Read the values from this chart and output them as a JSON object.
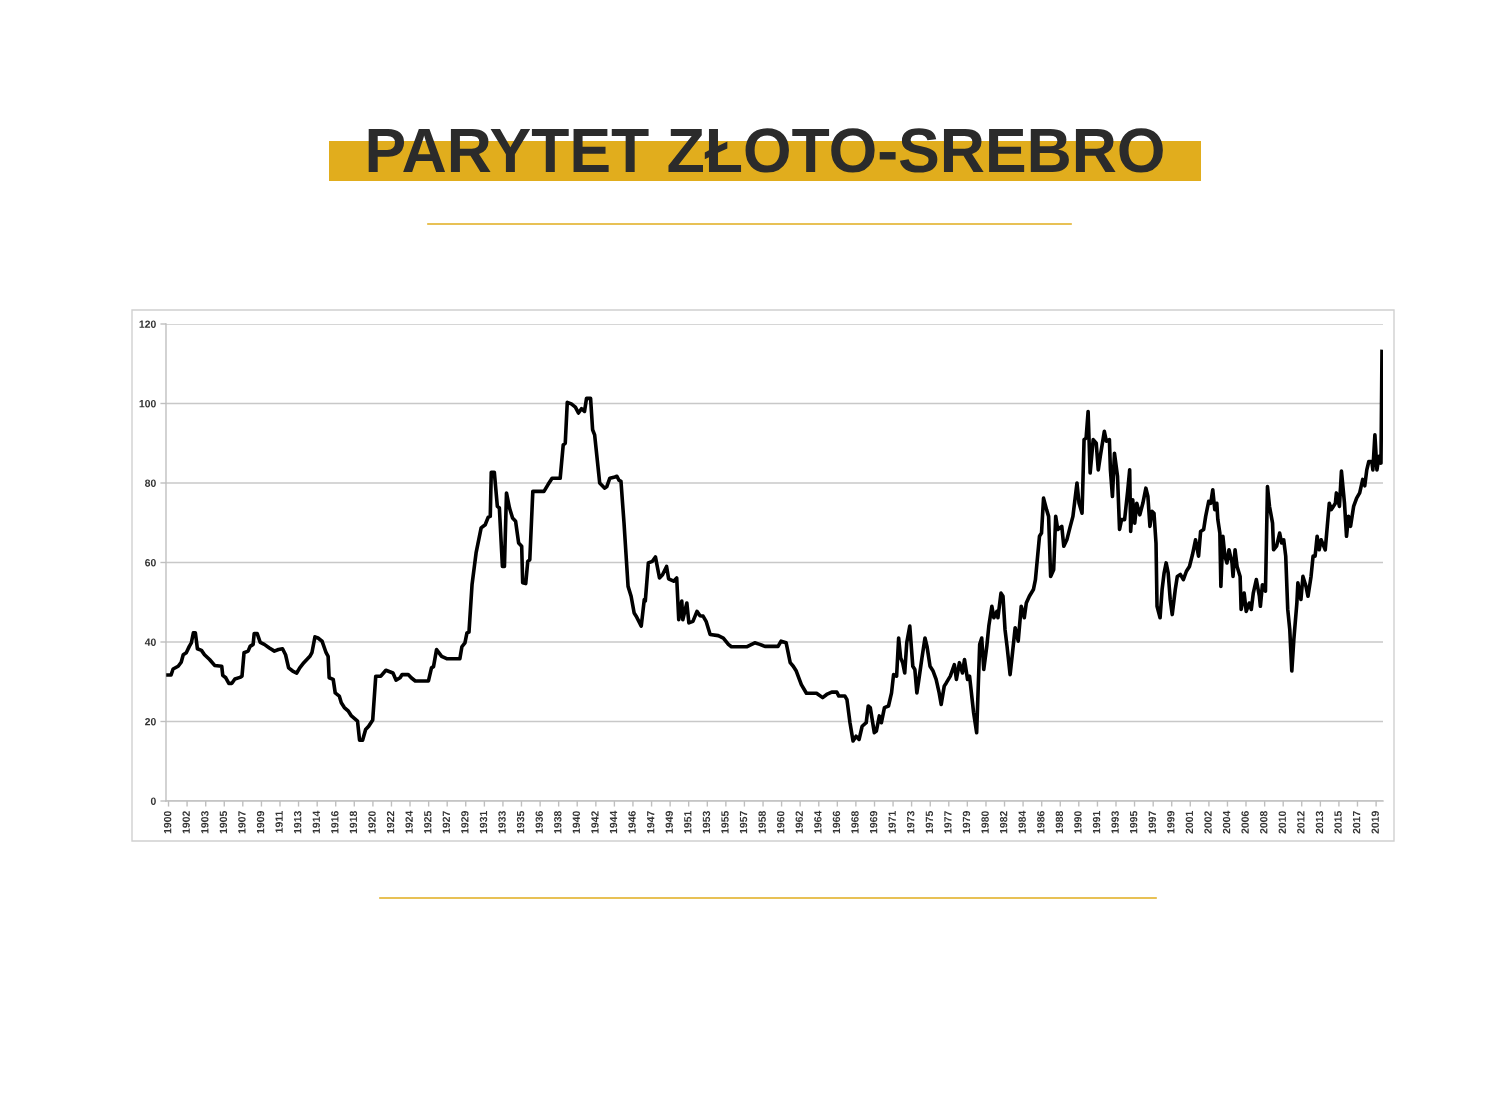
{
  "chart_data": {
    "type": "line",
    "title": "PARYTET ZŁOTO-SREBRO",
    "x": [
      1899.7,
      1900.0,
      1900.2,
      1900.7,
      1901.0,
      1901.2,
      1901.5,
      1901.8,
      1902.0,
      1902.2,
      1902.4,
      1902.6,
      1903.0,
      1903.3,
      1903.8,
      1904.3,
      1905.0,
      1905.1,
      1905.4,
      1905.7,
      1906.0,
      1906.3,
      1906.8,
      1907.0,
      1907.2,
      1907.6,
      1907.8,
      1908.1,
      1908.2,
      1908.5,
      1908.8,
      1909.2,
      1909.7,
      1910.2,
      1910.6,
      1911.0,
      1911.3,
      1911.6,
      1912.0,
      1912.4,
      1912.7,
      1913.1,
      1913.7,
      1913.9,
      1914.2,
      1914.5,
      1914.9,
      1915.3,
      1915.5,
      1915.6,
      1916.0,
      1916.2,
      1916.6,
      1916.8,
      1917.1,
      1917.5,
      1917.8,
      1918.4,
      1918.6,
      1918.9,
      1919.2,
      1919.5,
      1919.9,
      1920.2,
      1920.7,
      1921.2,
      1921.9,
      1922.2,
      1922.6,
      1922.8,
      1923.4,
      1923.7,
      1924.1,
      1925.4,
      1925.7,
      1925.9,
      1926.2,
      1926.7,
      1927.2,
      1928.5,
      1928.7,
      1929.0,
      1929.2,
      1929.4,
      1929.7,
      1930.1,
      1930.6,
      1931.0,
      1931.3,
      1931.5,
      1931.6,
      1931.9,
      1932.2,
      1932.4,
      1932.7,
      1932.9,
      1933.1,
      1933.4,
      1933.7,
      1934.0,
      1934.3,
      1934.6,
      1934.7,
      1935.0,
      1935.2,
      1935.4,
      1935.7,
      1936.8,
      1937.2,
      1937.6,
      1938.4,
      1938.7,
      1938.9,
      1939.1,
      1939.5,
      1939.9,
      1940.2,
      1940.5,
      1940.8,
      1941.0,
      1941.4,
      1941.6,
      1941.8,
      1942.3,
      1942.8,
      1943.0,
      1943.3,
      1943.8,
      1944.0,
      1944.2,
      1944.4,
      1944.7,
      1945.1,
      1945.4,
      1945.7,
      1945.9,
      1946.4,
      1946.7,
      1946.8,
      1947.1,
      1947.5,
      1947.8,
      1948.2,
      1948.5,
      1948.9,
      1949.1,
      1949.6,
      1949.9,
      1950.1,
      1950.4,
      1950.5,
      1950.9,
      1951.1,
      1951.5,
      1951.9,
      1952.2,
      1952.5,
      1952.8,
      1953.2,
      1954.0,
      1954.5,
      1955.0,
      1955.3,
      1956.8,
      1957.6,
      1958.1,
      1958.6,
      1959.9,
      1960.2,
      1960.7,
      1961.1,
      1961.4,
      1961.7,
      1962.2,
      1962.7,
      1963.7,
      1964.3,
      1964.7,
      1965.2,
      1965.7,
      1965.9,
      1966.5,
      1966.7,
      1967.0,
      1967.3,
      1967.6,
      1967.9,
      1968.2,
      1968.6,
      1968.8,
      1969.0,
      1969.4,
      1969.6,
      1969.9,
      1970.1,
      1970.4,
      1970.8,
      1971.1,
      1971.3,
      1971.6,
      1971.8,
      1972.0,
      1972.2,
      1972.4,
      1972.6,
      1972.9,
      1973.2,
      1973.4,
      1973.6,
      1973.8,
      1974.1,
      1974.4,
      1974.6,
      1974.9,
      1975.2,
      1975.5,
      1975.8,
      1976.0,
      1976.3,
      1976.5,
      1976.9,
      1977.3,
      1977.5,
      1977.8,
      1978.1,
      1978.3,
      1978.6,
      1978.8,
      1979.2,
      1979.5,
      1979.8,
      1980.0,
      1980.2,
      1980.5,
      1980.7,
      1981.0,
      1981.2,
      1981.5,
      1981.6,
      1981.9,
      1982.1,
      1982.3,
      1982.5,
      1982.8,
      1983.0,
      1983.3,
      1983.6,
      1983.9,
      1984.2,
      1984.4,
      1984.7,
      1985.1,
      1985.3,
      1985.7,
      1985.9,
      1986.1,
      1986.4,
      1986.6,
      1986.8,
      1987.1,
      1987.3,
      1987.5,
      1987.9,
      1988.1,
      1988.4,
      1988.7,
      1989.0,
      1989.4,
      1989.6,
      1989.9,
      1990.1,
      1990.3,
      1990.5,
      1990.7,
      1991.0,
      1991.3,
      1991.5,
      1991.7,
      1992.1,
      1992.3,
      1992.6,
      1992.7,
      1992.9,
      1993.1,
      1993.4,
      1993.6,
      1993.8,
      1994.1,
      1994.4,
      1994.6,
      1994.7,
      1994.9,
      1995.1,
      1995.3,
      1995.6,
      1995.9,
      1996.2,
      1996.4,
      1996.6,
      1996.8,
      1997.0,
      1997.2,
      1997.3,
      1997.6,
      1997.8,
      1998.0,
      1998.2,
      1998.4,
      1998.6,
      1998.8,
      1999.1,
      1999.3,
      1999.6,
      1999.9,
      2000.2,
      2000.5,
      2000.8,
      2001.1,
      2001.4,
      2001.6,
      2001.9,
      2002.1,
      2002.4,
      2002.6,
      2002.8,
      2003.0,
      2003.2,
      2003.3,
      2003.5,
      2003.6,
      2003.8,
      2004.0,
      2004.2,
      2004.4,
      2004.7,
      2004.8,
      2005.0,
      2005.2,
      2005.5,
      2005.6,
      2005.9,
      2006.1,
      2006.4,
      2006.6,
      2006.8,
      2007.1,
      2007.4,
      2007.5,
      2007.7,
      2008.0,
      2008.2,
      2008.4,
      2008.7,
      2008.8,
      2009.1,
      2009.4,
      2009.6,
      2009.8,
      2010.0,
      2010.2,
      2010.4,
      2010.6,
      2010.8,
      2011.1,
      2011.2,
      2011.5,
      2011.7,
      2012.0,
      2012.2,
      2012.5,
      2012.7,
      2012.9,
      2013.1,
      2013.3,
      2013.5,
      2013.9,
      2014.1,
      2014.3,
      2014.5,
      2014.9,
      2015.0,
      2015.3,
      2015.5,
      2015.8,
      2016.0,
      2016.2,
      2016.4,
      2016.7,
      2017.0,
      2017.3,
      2017.6,
      2017.8,
      2018.0,
      2018.2,
      2018.5,
      2018.6,
      2018.8,
      2019.0,
      2019.2,
      2019.4,
      2019.5
    ],
    "series": [
      {
        "color": "#000000",
        "values": [
          31.7,
          31.7,
          33.2,
          33.9,
          34.9,
          36.8,
          37.3,
          38.9,
          39.8,
          42.3,
          42.3,
          38.3,
          37.9,
          36.8,
          35.6,
          34.1,
          33.9,
          31.6,
          31.0,
          29.6,
          29.6,
          30.7,
          31.1,
          31.4,
          37.3,
          37.7,
          38.9,
          39.4,
          42.1,
          42.1,
          39.9,
          39.4,
          38.5,
          37.7,
          38.1,
          38.3,
          36.8,
          33.5,
          32.7,
          32.2,
          33.5,
          34.8,
          36.4,
          37.3,
          41.3,
          41.0,
          40.2,
          37.3,
          36.4,
          31.0,
          30.6,
          27.2,
          26.4,
          24.7,
          23.5,
          22.6,
          21.4,
          20.1,
          15.3,
          15.3,
          18.0,
          18.8,
          20.4,
          31.4,
          31.4,
          32.9,
          32.2,
          30.4,
          31.0,
          31.8,
          31.8,
          31.0,
          30.2,
          30.2,
          33.5,
          33.8,
          38.1,
          36.4,
          35.8,
          35.8,
          38.8,
          39.8,
          42.3,
          42.5,
          54.4,
          62.4,
          68.7,
          69.5,
          71.4,
          71.6,
          82.7,
          82.7,
          74.1,
          73.7,
          59.0,
          59.0,
          77.5,
          73.7,
          71.2,
          70.4,
          64.9,
          64.1,
          54.9,
          54.7,
          60.3,
          60.7,
          77.9,
          77.9,
          79.6,
          81.2,
          81.2,
          89.6,
          90.0,
          100.3,
          99.9,
          99.1,
          97.6,
          98.7,
          98.0,
          101.3,
          101.3,
          93.4,
          92.1,
          80.0,
          78.7,
          79.1,
          81.2,
          81.5,
          81.7,
          80.7,
          80.4,
          69.9,
          54.0,
          51.5,
          47.3,
          46.5,
          44.0,
          50.7,
          50.3,
          59.9,
          60.3,
          61.4,
          56.1,
          56.9,
          59.0,
          55.9,
          55.3,
          56.1,
          45.6,
          50.3,
          45.6,
          49.8,
          44.8,
          45.2,
          47.7,
          46.6,
          46.5,
          45.2,
          41.9,
          41.6,
          41.0,
          39.4,
          38.8,
          38.8,
          39.8,
          39.4,
          38.9,
          38.9,
          40.2,
          39.8,
          34.8,
          33.9,
          32.7,
          29.3,
          27.1,
          27.1,
          26.0,
          26.8,
          27.4,
          27.4,
          26.4,
          26.4,
          25.5,
          19.7,
          15.1,
          16.3,
          15.5,
          18.8,
          19.7,
          23.9,
          23.5,
          17.2,
          17.6,
          21.4,
          19.7,
          23.5,
          23.9,
          27.2,
          31.8,
          31.4,
          41.0,
          36.0,
          34.8,
          32.2,
          39.8,
          44.0,
          33.9,
          33.1,
          27.2,
          30.6,
          36.0,
          41.0,
          38.9,
          33.9,
          32.7,
          30.6,
          27.2,
          24.3,
          28.9,
          29.7,
          31.4,
          34.3,
          30.6,
          34.8,
          32.2,
          35.6,
          30.6,
          31.4,
          22.2,
          17.2,
          39.4,
          41.0,
          33.1,
          38.9,
          44.0,
          49.0,
          46.1,
          47.7,
          46.1,
          52.3,
          51.5,
          43.1,
          38.9,
          31.8,
          36.4,
          43.6,
          40.2,
          49.0,
          46.1,
          49.8,
          51.5,
          53.2,
          55.7,
          66.6,
          67.4,
          76.2,
          73.3,
          71.6,
          56.5,
          58.2,
          71.6,
          68.3,
          69.1,
          64.1,
          65.7,
          68.7,
          71.6,
          80.0,
          75.0,
          72.4,
          90.9,
          91.3,
          98.0,
          82.5,
          90.9,
          90.0,
          83.3,
          86.7,
          93.0,
          90.5,
          90.9,
          83.3,
          76.6,
          87.5,
          81.7,
          68.3,
          70.8,
          70.8,
          77.9,
          83.3,
          67.8,
          75.8,
          69.9,
          74.9,
          72.0,
          74.9,
          78.7,
          76.6,
          69.1,
          72.9,
          72.4,
          64.9,
          49.0,
          46.1,
          53.2,
          57.4,
          59.9,
          57.4,
          50.7,
          46.9,
          53.2,
          56.5,
          57.0,
          55.7,
          57.8,
          59.0,
          62.0,
          65.7,
          61.6,
          67.8,
          68.3,
          71.6,
          75.4,
          74.9,
          78.3,
          73.3,
          74.9,
          70.8,
          67.4,
          54.0,
          66.6,
          61.6,
          59.9,
          63.2,
          59.9,
          56.5,
          63.2,
          59.0,
          56.5,
          48.2,
          52.3,
          47.7,
          49.8,
          48.2,
          52.3,
          55.7,
          51.5,
          49.0,
          54.4,
          52.8,
          79.1,
          74.1,
          69.9,
          63.2,
          64.1,
          67.4,
          64.9,
          65.7,
          61.6,
          48.2,
          43.1,
          32.7,
          40.6,
          49.8,
          54.9,
          50.7,
          56.5,
          54.0,
          51.5,
          56.5,
          61.6,
          61.6,
          66.6,
          63.2,
          65.7,
          63.2,
          69.1,
          74.9,
          73.3,
          74.9,
          77.5,
          74.1,
          83.0,
          74.9,
          66.6,
          71.6,
          69.1,
          74.1,
          76.2,
          77.5,
          80.9,
          79.3,
          83.3,
          85.4,
          85.4,
          83.3,
          92.1,
          83.3,
          86.7,
          85.0,
          113.1
        ]
      }
    ],
    "xlim": [
      1899.5,
      2019.6
    ],
    "xticks": [
      {
        "value": 1899.75,
        "label": "1900"
      },
      {
        "value": 1901.58,
        "label": "1902"
      },
      {
        "value": 1903.42,
        "label": "1903"
      },
      {
        "value": 1905.25,
        "label": "1905"
      },
      {
        "value": 1907.08,
        "label": "1907"
      },
      {
        "value": 1908.92,
        "label": "1909"
      },
      {
        "value": 1910.75,
        "label": "1911"
      },
      {
        "value": 1912.58,
        "label": "1913"
      },
      {
        "value": 1914.42,
        "label": "1914"
      },
      {
        "value": 1916.25,
        "label": "1916"
      },
      {
        "value": 1918.08,
        "label": "1918"
      },
      {
        "value": 1919.92,
        "label": "1920"
      },
      {
        "value": 1921.75,
        "label": "1922"
      },
      {
        "value": 1923.58,
        "label": "1924"
      },
      {
        "value": 1925.42,
        "label": "1925"
      },
      {
        "value": 1927.25,
        "label": "1927"
      },
      {
        "value": 1929.08,
        "label": "1929"
      },
      {
        "value": 1930.92,
        "label": "1931"
      },
      {
        "value": 1932.75,
        "label": "1933"
      },
      {
        "value": 1934.58,
        "label": "1935"
      },
      {
        "value": 1936.42,
        "label": "1936"
      },
      {
        "value": 1938.25,
        "label": "1938"
      },
      {
        "value": 1940.08,
        "label": "1940"
      },
      {
        "value": 1941.92,
        "label": "1942"
      },
      {
        "value": 1943.75,
        "label": "1944"
      },
      {
        "value": 1945.58,
        "label": "1946"
      },
      {
        "value": 1947.42,
        "label": "1947"
      },
      {
        "value": 1949.25,
        "label": "1949"
      },
      {
        "value": 1951.08,
        "label": "1951"
      },
      {
        "value": 1952.92,
        "label": "1953"
      },
      {
        "value": 1954.75,
        "label": "1955"
      },
      {
        "value": 1956.58,
        "label": "1957"
      },
      {
        "value": 1958.42,
        "label": "1958"
      },
      {
        "value": 1960.25,
        "label": "1960"
      },
      {
        "value": 1962.08,
        "label": "1962"
      },
      {
        "value": 1963.92,
        "label": "1964"
      },
      {
        "value": 1965.75,
        "label": "1966"
      },
      {
        "value": 1967.58,
        "label": "1968"
      },
      {
        "value": 1969.42,
        "label": "1969"
      },
      {
        "value": 1971.25,
        "label": "1971"
      },
      {
        "value": 1973.08,
        "label": "1973"
      },
      {
        "value": 1974.92,
        "label": "1975"
      },
      {
        "value": 1976.75,
        "label": "1977"
      },
      {
        "value": 1978.58,
        "label": "1979"
      },
      {
        "value": 1980.42,
        "label": "1980"
      },
      {
        "value": 1982.25,
        "label": "1982"
      },
      {
        "value": 1984.08,
        "label": "1984"
      },
      {
        "value": 1985.92,
        "label": "1986"
      },
      {
        "value": 1987.75,
        "label": "1988"
      },
      {
        "value": 1989.58,
        "label": "1990"
      },
      {
        "value": 1991.42,
        "label": "1991"
      },
      {
        "value": 1993.25,
        "label": "1993"
      },
      {
        "value": 1995.08,
        "label": "1995"
      },
      {
        "value": 1996.92,
        "label": "1997"
      },
      {
        "value": 1998.75,
        "label": "1999"
      },
      {
        "value": 2000.58,
        "label": "2001"
      },
      {
        "value": 2002.42,
        "label": "2002"
      },
      {
        "value": 2004.25,
        "label": "2004"
      },
      {
        "value": 2006.08,
        "label": "2006"
      },
      {
        "value": 2007.92,
        "label": "2008"
      },
      {
        "value": 2009.75,
        "label": "2010"
      },
      {
        "value": 2011.58,
        "label": "2012"
      },
      {
        "value": 2013.42,
        "label": "2013"
      },
      {
        "value": 2015.25,
        "label": "2015"
      },
      {
        "value": 2017.08,
        "label": "2017"
      },
      {
        "value": 2018.92,
        "label": "2019"
      }
    ],
    "ylim": [
      0,
      120
    ],
    "yticks": [
      0,
      20,
      40,
      60,
      80,
      100,
      120
    ],
    "grid": "y",
    "line_style": "solid"
  }
}
